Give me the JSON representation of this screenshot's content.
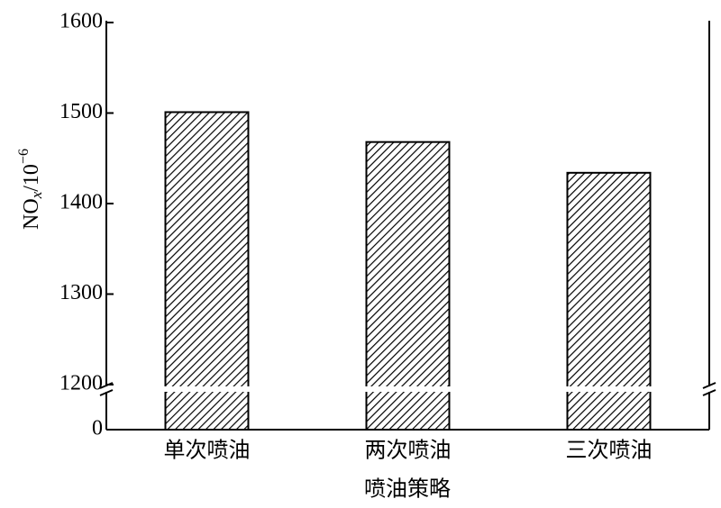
{
  "chart_data": {
    "type": "bar",
    "ylabel_parts": [
      "NO",
      "x",
      "/10",
      "−6"
    ],
    "xlabel": "喷油策略",
    "categories": [
      "单次喷油",
      "两次喷油",
      "三次喷油"
    ],
    "values": [
      1501,
      1468,
      1434
    ],
    "color": "#000000",
    "hatch": true,
    "axis_break": true,
    "ylim": [
      0,
      1600
    ],
    "yticks": [
      0,
      1200,
      1300,
      1400,
      1500,
      1600
    ]
  }
}
